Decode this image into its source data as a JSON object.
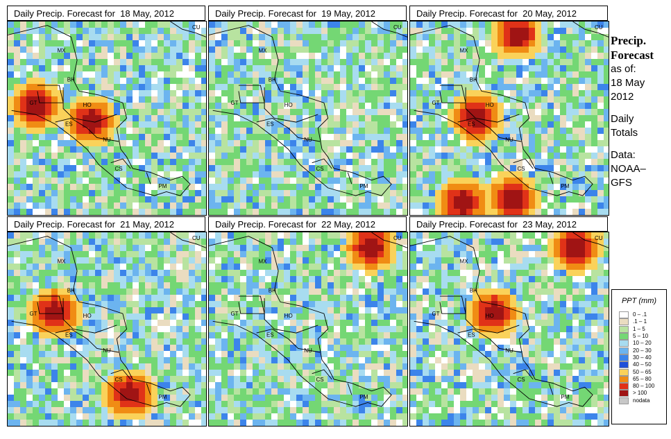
{
  "panels": [
    {
      "title": "Daily Precip. Forecast for  18 May, 2012",
      "seed": 11,
      "hot": [
        [
          0.4,
          0.5
        ],
        [
          0.13,
          0.42
        ]
      ]
    },
    {
      "title": "Daily Precip. Forecast for  19 May, 2012",
      "seed": 23,
      "hot": []
    },
    {
      "title": "Daily Precip. Forecast for  20 May, 2012",
      "seed": 37,
      "hot": [
        [
          0.52,
          0.05
        ],
        [
          0.32,
          0.48
        ],
        [
          0.25,
          0.92
        ],
        [
          0.5,
          0.9
        ]
      ]
    },
    {
      "title": "Daily Precip. Forecast for  21 May, 2012",
      "seed": 41,
      "hot": [
        [
          0.22,
          0.4
        ],
        [
          0.6,
          0.82
        ]
      ]
    },
    {
      "title": "Daily Precip. Forecast for  22 May, 2012",
      "seed": 53,
      "hot": [
        [
          0.8,
          0.06
        ]
      ]
    },
    {
      "title": "Daily Precip. Forecast for  23 May, 2012",
      "seed": 67,
      "hot": [
        [
          0.82,
          0.06
        ],
        [
          0.4,
          0.4
        ]
      ]
    }
  ],
  "country_labels": [
    "MX",
    "BH",
    "GT",
    "HO",
    "ES",
    "NU",
    "CS",
    "PM",
    "CU"
  ],
  "side": {
    "title1": "Precip.",
    "title2": "Forecast",
    "asof": "as of:",
    "date1": "18 May",
    "date2": "2012",
    "daily1": "Daily",
    "daily2": "Totals",
    "data1": "Data:",
    "data2": "NOAA–",
    "data3": "GFS"
  },
  "legend": {
    "title": "PPT (mm)",
    "items": [
      {
        "label": "0 – .1",
        "color": "#ffffff"
      },
      {
        "label": ".1 – 1",
        "color": "#eadcc0"
      },
      {
        "label": "1 – 5",
        "color": "#b8e3a0"
      },
      {
        "label": "5 – 10",
        "color": "#74d774"
      },
      {
        "label": "10 – 20",
        "color": "#a8dcf0"
      },
      {
        "label": "20 – 30",
        "color": "#6cb4ef"
      },
      {
        "label": "30 – 40",
        "color": "#3c84ea"
      },
      {
        "label": "40 – 50",
        "color": "#2050d8"
      },
      {
        "label": "50 – 65",
        "color": "#fad25a"
      },
      {
        "label": "65 – 80",
        "color": "#f08c14"
      },
      {
        "label": "80 – 100",
        "color": "#e03218"
      },
      {
        "label": "> 100",
        "color": "#a01414"
      },
      {
        "label": "nodata",
        "color": "#c8c8c8"
      }
    ]
  }
}
